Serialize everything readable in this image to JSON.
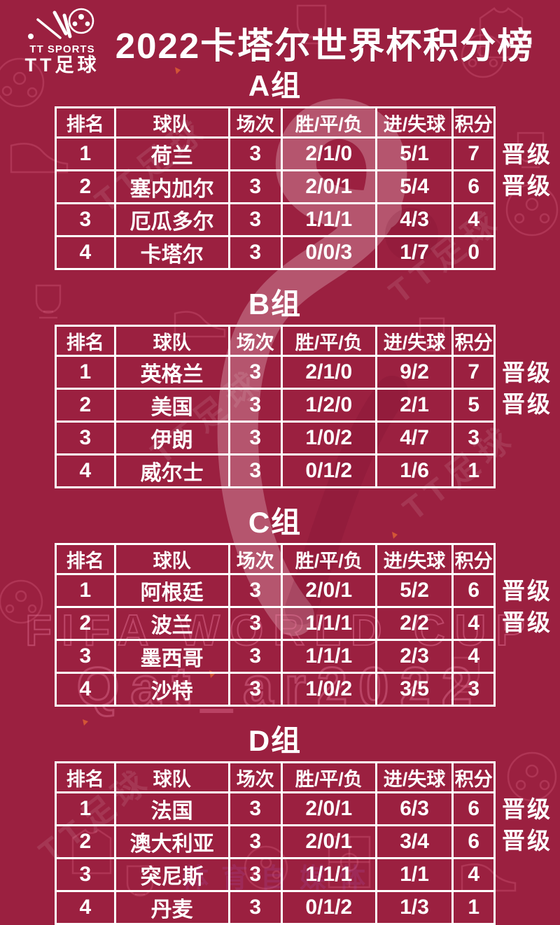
{
  "page": {
    "background_color": "#9b2040",
    "text_color": "#ffffff",
    "pattern_color": "#c05a75"
  },
  "logo": {
    "icon": "soccer-ball-comet-icon",
    "brand_top": "TT SPORTS",
    "brand_bottom": "TT足球"
  },
  "title": "2022卡塔尔世界杯积分榜",
  "labels": {
    "qualify": "晋级"
  },
  "watermarks": {
    "fifa": "FIFA WORLD CUP",
    "qatar": "Qat_ar2022",
    "tt_diagonal": "TT足球",
    "bottom": "体育自媒体"
  },
  "chart_data": {
    "type": "table",
    "title": "2022卡塔尔世界杯积分榜",
    "columns": [
      "排名",
      "球队",
      "场次",
      "胜/平/负",
      "进/失球",
      "积分"
    ],
    "groups": [
      {
        "name": "A组",
        "rows": [
          {
            "rank": "1",
            "team": "荷兰",
            "played": "3",
            "wdl": "2/1/0",
            "goals": "5/1",
            "points": "7",
            "qualified": true
          },
          {
            "rank": "2",
            "team": "塞内加尔",
            "played": "3",
            "wdl": "2/0/1",
            "goals": "5/4",
            "points": "6",
            "qualified": true
          },
          {
            "rank": "3",
            "team": "厄瓜多尔",
            "played": "3",
            "wdl": "1/1/1",
            "goals": "4/3",
            "points": "4",
            "qualified": false
          },
          {
            "rank": "4",
            "team": "卡塔尔",
            "played": "3",
            "wdl": "0/0/3",
            "goals": "1/7",
            "points": "0",
            "qualified": false
          }
        ]
      },
      {
        "name": "B组",
        "rows": [
          {
            "rank": "1",
            "team": "英格兰",
            "played": "3",
            "wdl": "2/1/0",
            "goals": "9/2",
            "points": "7",
            "qualified": true
          },
          {
            "rank": "2",
            "team": "美国",
            "played": "3",
            "wdl": "1/2/0",
            "goals": "2/1",
            "points": "5",
            "qualified": true
          },
          {
            "rank": "3",
            "team": "伊朗",
            "played": "3",
            "wdl": "1/0/2",
            "goals": "4/7",
            "points": "3",
            "qualified": false
          },
          {
            "rank": "4",
            "team": "威尔士",
            "played": "3",
            "wdl": "0/1/2",
            "goals": "1/6",
            "points": "1",
            "qualified": false
          }
        ]
      },
      {
        "name": "C组",
        "rows": [
          {
            "rank": "1",
            "team": "阿根廷",
            "played": "3",
            "wdl": "2/0/1",
            "goals": "5/2",
            "points": "6",
            "qualified": true
          },
          {
            "rank": "2",
            "team": "波兰",
            "played": "3",
            "wdl": "1/1/1",
            "goals": "2/2",
            "points": "4",
            "qualified": true
          },
          {
            "rank": "3",
            "team": "墨西哥",
            "played": "3",
            "wdl": "1/1/1",
            "goals": "2/3",
            "points": "4",
            "qualified": false
          },
          {
            "rank": "4",
            "team": "沙特",
            "played": "3",
            "wdl": "1/0/2",
            "goals": "3/5",
            "points": "3",
            "qualified": false
          }
        ]
      },
      {
        "name": "D组",
        "rows": [
          {
            "rank": "1",
            "team": "法国",
            "played": "3",
            "wdl": "2/0/1",
            "goals": "6/3",
            "points": "6",
            "qualified": true
          },
          {
            "rank": "2",
            "team": "澳大利亚",
            "played": "3",
            "wdl": "2/0/1",
            "goals": "3/4",
            "points": "6",
            "qualified": true
          },
          {
            "rank": "3",
            "team": "突尼斯",
            "played": "3",
            "wdl": "1/1/1",
            "goals": "1/1",
            "points": "4",
            "qualified": false
          },
          {
            "rank": "4",
            "team": "丹麦",
            "played": "3",
            "wdl": "0/1/2",
            "goals": "1/3",
            "points": "1",
            "qualified": false
          }
        ]
      }
    ]
  }
}
